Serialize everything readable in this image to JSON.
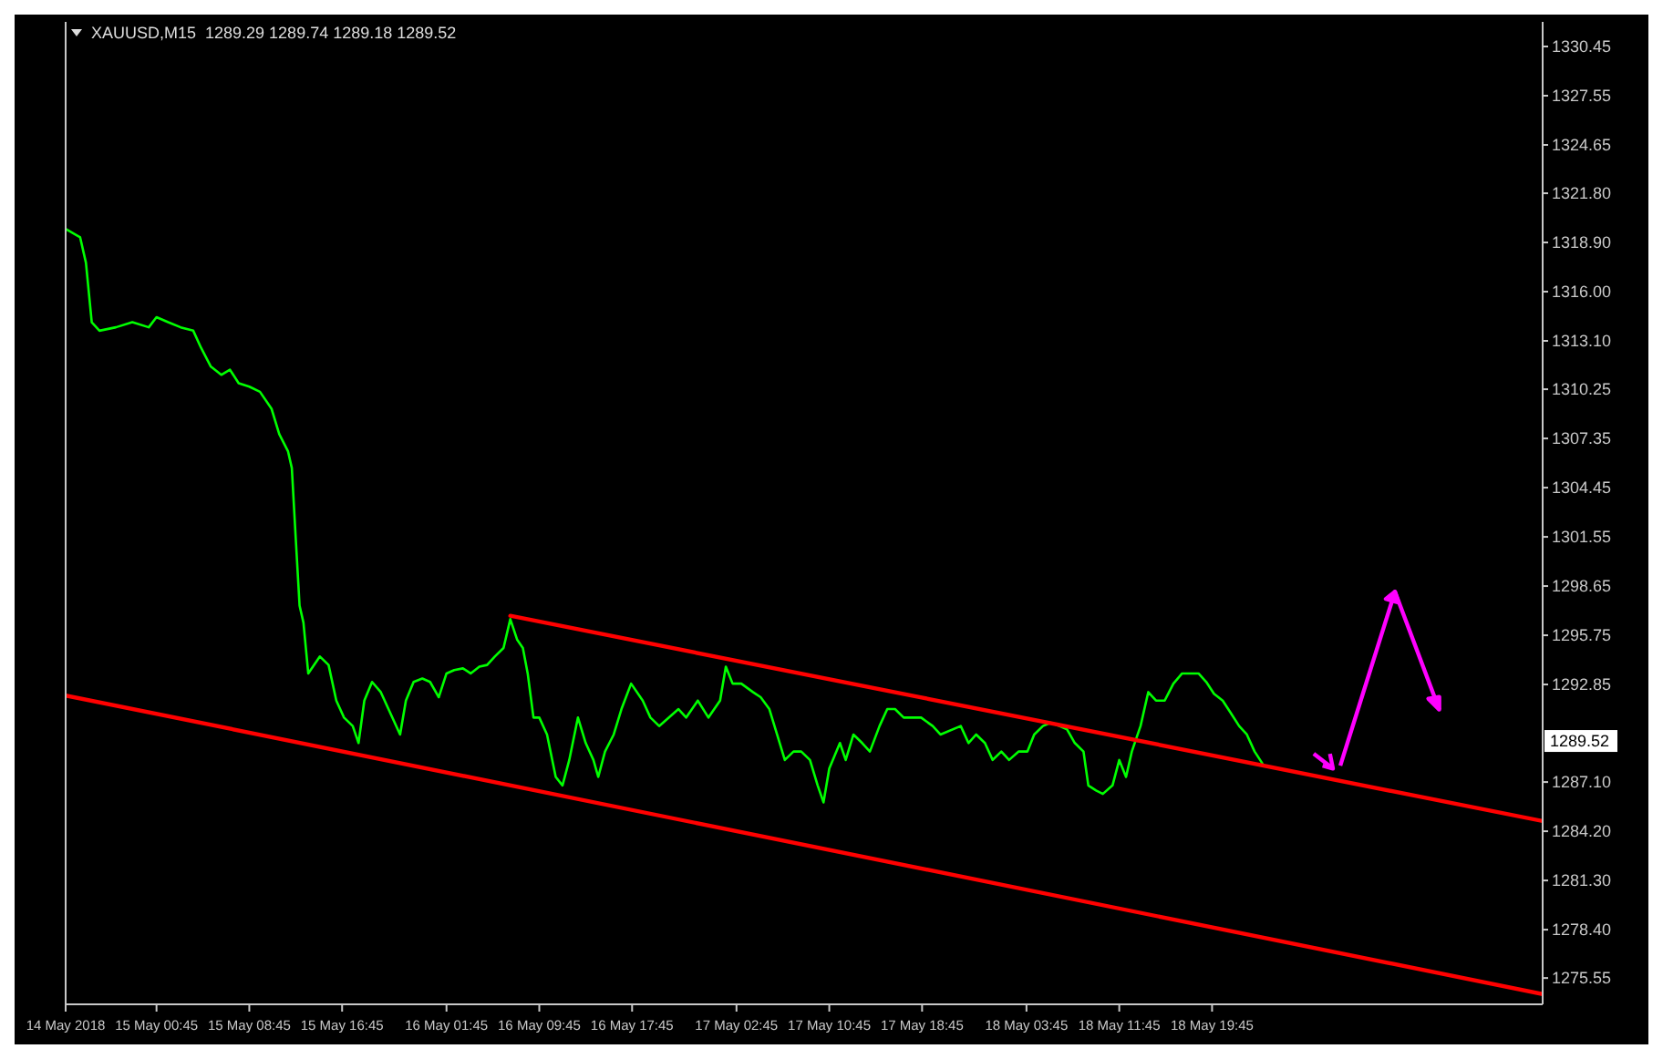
{
  "chart_data": {
    "type": "line",
    "title": "XAUUSD,M15  1289.29 1289.74 1289.18 1289.52",
    "xlim": [
      "2018-05-14T16:55",
      "2018-05-20T00:15"
    ],
    "ylim": [
      1274.0,
      1331.9
    ],
    "xticks": [
      {
        "value": "2018-05-14T16:55",
        "label": "14 May 2018"
      },
      {
        "value": "2018-05-15T00:45",
        "label": "15 May 00:45"
      },
      {
        "value": "2018-05-15T08:45",
        "label": "15 May 08:45"
      },
      {
        "value": "2018-05-15T16:45",
        "label": "15 May 16:45"
      },
      {
        "value": "2018-05-16T01:45",
        "label": "16 May 01:45"
      },
      {
        "value": "2018-05-16T09:45",
        "label": "16 May 09:45"
      },
      {
        "value": "2018-05-16T17:45",
        "label": "16 May 17:45"
      },
      {
        "value": "2018-05-17T02:45",
        "label": "17 May 02:45"
      },
      {
        "value": "2018-05-17T10:45",
        "label": "17 May 10:45"
      },
      {
        "value": "2018-05-17T18:45",
        "label": "17 May 18:45"
      },
      {
        "value": "2018-05-18T03:45",
        "label": "18 May 03:45"
      },
      {
        "value": "2018-05-18T11:45",
        "label": "18 May 11:45"
      },
      {
        "value": "2018-05-18T19:45",
        "label": "18 May 19:45"
      }
    ],
    "yticks": [
      {
        "value": 1275.55,
        "label": "1275.55"
      },
      {
        "value": 1278.4,
        "label": "1278.40"
      },
      {
        "value": 1281.3,
        "label": "1281.30"
      },
      {
        "value": 1284.2,
        "label": "1284.20"
      },
      {
        "value": 1287.1,
        "label": "1287.10"
      },
      {
        "value": 1292.85,
        "label": "1292.85"
      },
      {
        "value": 1295.75,
        "label": "1295.75"
      },
      {
        "value": 1298.65,
        "label": "1298.65"
      },
      {
        "value": 1301.55,
        "label": "1301.55"
      },
      {
        "value": 1304.45,
        "label": "1304.45"
      },
      {
        "value": 1307.35,
        "label": "1307.35"
      },
      {
        "value": 1310.25,
        "label": "1310.25"
      },
      {
        "value": 1313.1,
        "label": "1313.10"
      },
      {
        "value": 1316.0,
        "label": "1316.00"
      },
      {
        "value": 1318.9,
        "label": "1318.90"
      },
      {
        "value": 1321.8,
        "label": "1321.80"
      },
      {
        "value": 1324.65,
        "label": "1324.65"
      },
      {
        "value": 1327.55,
        "label": "1327.55"
      },
      {
        "value": 1330.45,
        "label": "1330.45"
      }
    ],
    "grid": false,
    "marker": "none",
    "line_style": "solid",
    "annotations": [
      {
        "text": "1289.52",
        "y": 1289.52
      }
    ],
    "series": [
      {
        "color": "#00ff00",
        "x": [
          "2018-05-14T16:55",
          "2018-05-14T18:10",
          "2018-05-14T18:40",
          "2018-05-14T19:10",
          "2018-05-14T19:50",
          "2018-05-14T21:15",
          "2018-05-14T22:40",
          "2018-05-15T00:05",
          "2018-05-15T00:45",
          "2018-05-15T01:45",
          "2018-05-15T02:50",
          "2018-05-15T03:55",
          "2018-05-15T04:35",
          "2018-05-15T05:25",
          "2018-05-15T06:20",
          "2018-05-15T07:05",
          "2018-05-15T07:50",
          "2018-05-15T08:45",
          "2018-05-15T09:40",
          "2018-05-15T10:40",
          "2018-05-15T11:20",
          "2018-05-15T12:05",
          "2018-05-15T12:25",
          "2018-05-15T12:45",
          "2018-05-15T13:05",
          "2018-05-15T13:25",
          "2018-05-15T13:50",
          "2018-05-15T14:50",
          "2018-05-15T15:35",
          "2018-05-15T16:15",
          "2018-05-15T16:55",
          "2018-05-15T17:40",
          "2018-05-15T18:10",
          "2018-05-15T18:40",
          "2018-05-15T19:20",
          "2018-05-15T20:05",
          "2018-05-15T21:45",
          "2018-05-15T22:15",
          "2018-05-15T22:55",
          "2018-05-15T23:40",
          "2018-05-16T00:20",
          "2018-05-16T01:05",
          "2018-05-16T01:45",
          "2018-05-16T02:25",
          "2018-05-16T03:10",
          "2018-05-16T03:50",
          "2018-05-16T04:35",
          "2018-05-16T05:15",
          "2018-05-16T05:55",
          "2018-05-16T06:40",
          "2018-05-16T07:15",
          "2018-05-16T07:50",
          "2018-05-16T08:20",
          "2018-05-16T08:45",
          "2018-05-16T09:15",
          "2018-05-16T09:45",
          "2018-05-16T10:25",
          "2018-05-16T11:10",
          "2018-05-16T11:45",
          "2018-05-16T12:20",
          "2018-05-16T13:05",
          "2018-05-16T13:45",
          "2018-05-16T14:25",
          "2018-05-16T14:50",
          "2018-05-16T15:25",
          "2018-05-16T16:10",
          "2018-05-16T16:50",
          "2018-05-16T17:40",
          "2018-05-16T18:40",
          "2018-05-16T19:20",
          "2018-05-16T20:05",
          "2018-05-16T21:45",
          "2018-05-16T22:25",
          "2018-05-16T23:25",
          "2018-05-17T00:20",
          "2018-05-17T01:20",
          "2018-05-17T01:50",
          "2018-05-17T02:25",
          "2018-05-17T03:10",
          "2018-05-17T04:10",
          "2018-05-17T04:50",
          "2018-05-17T05:35",
          "2018-05-17T06:15",
          "2018-05-17T06:55",
          "2018-05-17T07:40",
          "2018-05-17T08:20",
          "2018-05-17T09:05",
          "2018-05-17T09:45",
          "2018-05-17T10:15",
          "2018-05-17T10:45",
          "2018-05-17T11:40",
          "2018-05-17T12:10",
          "2018-05-17T12:50",
          "2018-05-17T13:35",
          "2018-05-17T14:15",
          "2018-05-17T15:05",
          "2018-05-17T15:45",
          "2018-05-17T16:25",
          "2018-05-17T17:10",
          "2018-05-17T17:50",
          "2018-05-17T18:40",
          "2018-05-17T19:40",
          "2018-05-17T20:20",
          "2018-05-17T22:05",
          "2018-05-17T22:45",
          "2018-05-17T23:25",
          "2018-05-18T00:10",
          "2018-05-18T00:50",
          "2018-05-18T01:35",
          "2018-05-18T02:15",
          "2018-05-18T03:05",
          "2018-05-18T03:50",
          "2018-05-18T04:25",
          "2018-05-18T05:10",
          "2018-05-18T05:50",
          "2018-05-18T06:35",
          "2018-05-18T07:15",
          "2018-05-18T07:55",
          "2018-05-18T08:40",
          "2018-05-18T09:05",
          "2018-05-18T09:45",
          "2018-05-18T10:20",
          "2018-05-18T11:10",
          "2018-05-18T11:45",
          "2018-05-18T12:20",
          "2018-05-18T12:50",
          "2018-05-18T13:35",
          "2018-05-18T14:15",
          "2018-05-18T14:55",
          "2018-05-18T15:40",
          "2018-05-18T16:25",
          "2018-05-18T17:10",
          "2018-05-18T17:50",
          "2018-05-18T18:35",
          "2018-05-18T19:15",
          "2018-05-18T19:55",
          "2018-05-18T20:40",
          "2018-05-18T21:20",
          "2018-05-18T22:05",
          "2018-05-18T22:45",
          "2018-05-18T23:25",
          "2018-05-19T00:05"
        ],
        "values": [
          1319.7,
          1319.2,
          1317.7,
          1314.2,
          1313.7,
          1313.9,
          1314.2,
          1313.9,
          1314.5,
          1314.2,
          1313.9,
          1313.7,
          1312.7,
          1311.6,
          1311.1,
          1311.4,
          1310.6,
          1310.4,
          1310.1,
          1309.1,
          1307.6,
          1306.6,
          1305.6,
          1301.5,
          1297.5,
          1296.5,
          1293.5,
          1294.5,
          1294.0,
          1291.9,
          1290.9,
          1290.4,
          1289.4,
          1291.9,
          1293.0,
          1292.4,
          1289.9,
          1291.9,
          1293.0,
          1293.2,
          1293.0,
          1292.1,
          1293.5,
          1293.7,
          1293.8,
          1293.5,
          1293.9,
          1294.0,
          1294.5,
          1295.0,
          1296.7,
          1295.5,
          1295.0,
          1293.5,
          1290.9,
          1290.9,
          1289.9,
          1287.4,
          1286.9,
          1288.4,
          1290.9,
          1289.4,
          1288.4,
          1287.4,
          1288.9,
          1289.9,
          1291.4,
          1292.9,
          1291.9,
          1290.9,
          1290.4,
          1291.4,
          1290.9,
          1291.9,
          1290.9,
          1291.9,
          1293.9,
          1292.9,
          1292.9,
          1292.4,
          1292.1,
          1291.4,
          1289.9,
          1288.4,
          1288.9,
          1288.9,
          1288.4,
          1286.9,
          1285.9,
          1287.9,
          1289.4,
          1288.4,
          1289.9,
          1289.4,
          1288.9,
          1290.4,
          1291.4,
          1291.4,
          1290.9,
          1290.9,
          1290.9,
          1290.4,
          1289.9,
          1290.4,
          1289.4,
          1289.9,
          1289.4,
          1288.4,
          1288.9,
          1288.4,
          1288.9,
          1288.9,
          1289.9,
          1290.4,
          1290.6,
          1290.4,
          1290.2,
          1289.4,
          1288.9,
          1286.9,
          1286.6,
          1286.4,
          1286.9,
          1288.4,
          1287.4,
          1288.9,
          1290.4,
          1292.4,
          1291.9,
          1291.9,
          1292.9,
          1293.5,
          1293.5,
          1293.5,
          1293.0,
          1292.3,
          1291.9,
          1291.2,
          1290.4,
          1289.9,
          1288.9,
          1288.2
        ]
      },
      {
        "color": "#ff0000",
        "x": [
          "2018-05-16T07:15",
          "2018-05-20T00:15"
        ],
        "values": [
          1296.9,
          1284.8
        ]
      },
      {
        "color": "#ff0000",
        "x": [
          "2018-05-14T16:55",
          "2018-05-20T00:15"
        ],
        "values": [
          1292.2,
          1274.6
        ]
      }
    ]
  }
}
